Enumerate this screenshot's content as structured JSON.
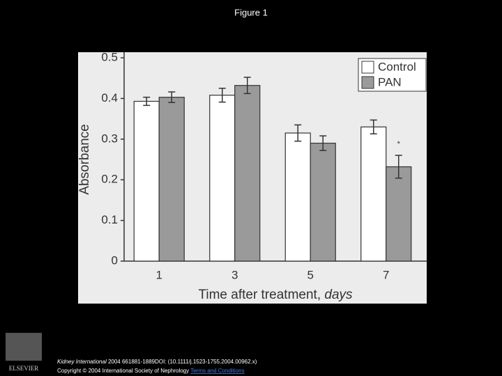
{
  "page_title": "Figure 1",
  "chart_data": {
    "type": "bar",
    "y_label": "Absorbance",
    "x_label": "Time after treatment,",
    "x_label_unit": "days",
    "categories": [
      "1",
      "3",
      "5",
      "7"
    ],
    "series": [
      {
        "name": "Control",
        "color": "#ffffff",
        "values": [
          0.393,
          0.408,
          0.315,
          0.33
        ],
        "errors": [
          0.01,
          0.017,
          0.02,
          0.017
        ]
      },
      {
        "name": "PAN",
        "color": "#9a9a9a",
        "values": [
          0.403,
          0.432,
          0.29,
          0.232
        ],
        "errors": [
          0.013,
          0.02,
          0.018,
          0.028
        ]
      }
    ],
    "annotation": "*",
    "ylim": [
      0,
      0.5
    ],
    "yticks": [
      0,
      0.1,
      0.2,
      0.3,
      0.4,
      0.5
    ],
    "grid": false,
    "legend": "top-right"
  },
  "footer": {
    "journal": "Kidney International",
    "citation": "2004 661881-1889DOI: (10.1111/j.1523-1755.2004.00962.x)",
    "copyright": "Copyright © 2004 International Society of Nephrology",
    "link": "Terms and Conditions",
    "logo": "ELSEVIER"
  }
}
